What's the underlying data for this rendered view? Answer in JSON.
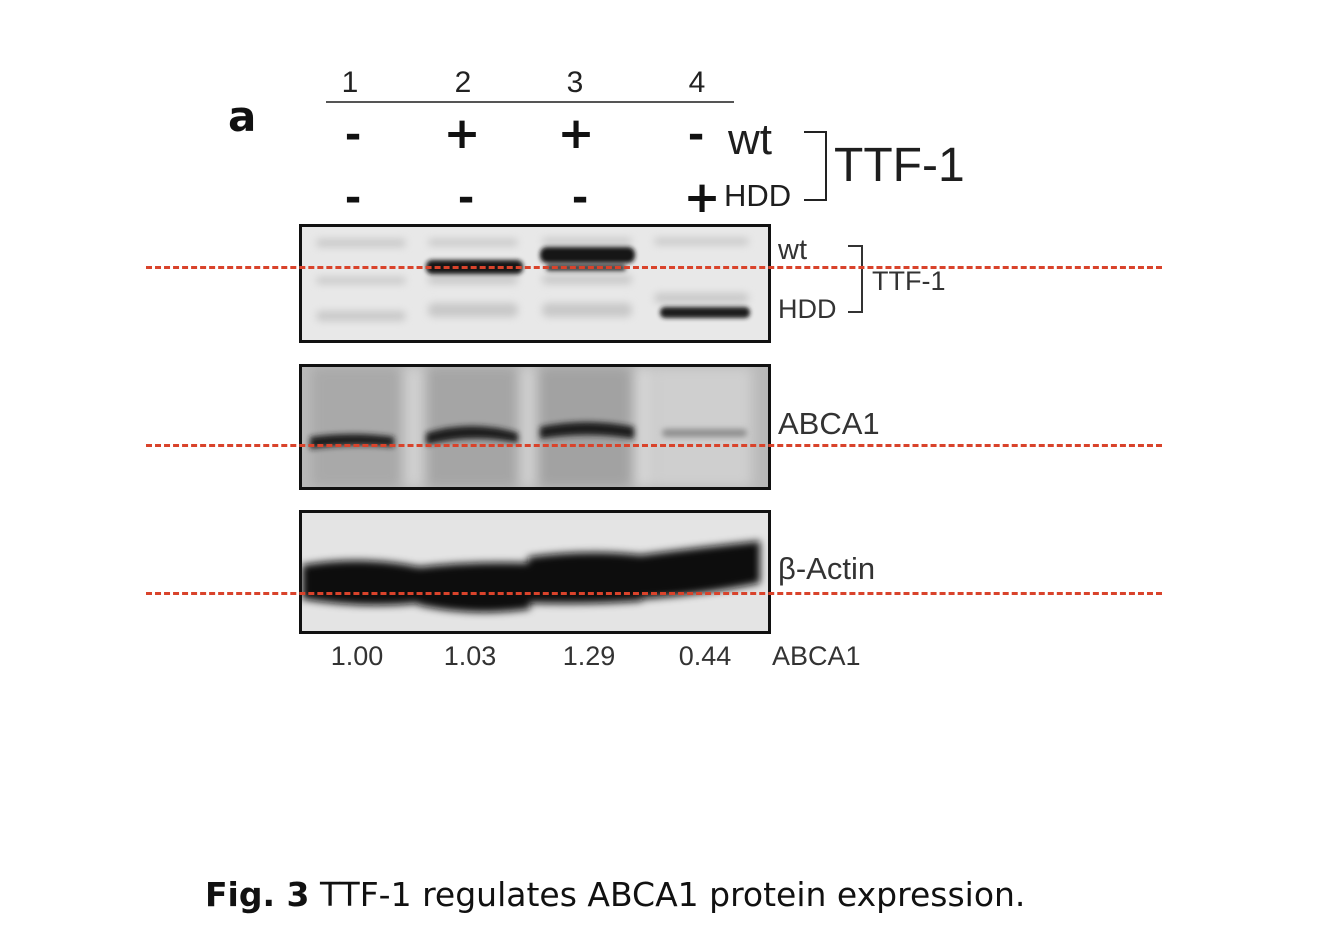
{
  "figure": {
    "panel_letter": "a",
    "lanes": [
      "1",
      "2",
      "3",
      "4"
    ],
    "wt_row": {
      "signs": [
        "-",
        "+",
        "+",
        "-"
      ],
      "label": "wt"
    },
    "hdd_row": {
      "signs": [
        "-",
        "-",
        "-",
        "+"
      ],
      "label": "HDD"
    },
    "group_label": "TTF-1",
    "blots": {
      "ttf1": {
        "band_labels": {
          "wt": "wt",
          "hdd": "HDD"
        },
        "group_label": "TTF-1"
      },
      "abca1": {
        "label": "ABCA1"
      },
      "actin": {
        "label": "β-Actin"
      }
    },
    "quantification": {
      "values": [
        "1.00",
        "1.03",
        "1.29",
        "0.44"
      ],
      "label": "ABCA1"
    }
  },
  "caption": {
    "prefix": "Fig. 3",
    "text": " TTF-1 regulates ABCA1 protein expression."
  },
  "colors": {
    "guide_line": "#d9432b",
    "blot_background": "#e6e6e6",
    "band": "#111111"
  }
}
